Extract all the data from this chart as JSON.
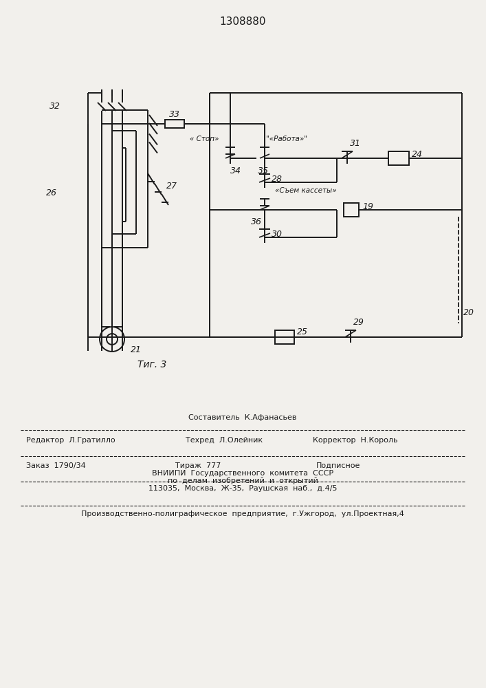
{
  "title": "1308880",
  "fig_label": "Τиг. 3",
  "bg": "#f2f0ec",
  "lc": "#1a1a1a",
  "label_32": "32",
  "label_26": "26",
  "label_27": "27",
  "label_21": "21",
  "label_33": "33",
  "label_34": "34",
  "label_35": "35",
  "label_28": "28",
  "label_31": "31",
  "label_24": "24",
  "label_36": "36",
  "label_30": "30",
  "label_19": "19",
  "label_20": "20",
  "label_25": "25",
  "label_29": "29",
  "label_stop": "« Стоп»",
  "label_work": "«Работа»",
  "label_cassette": "«Съем кассеты»",
  "footer_composer": "Составитель  К.Афанасьев",
  "footer_editor": "Редактор  Л.Гратилло",
  "footer_techred": "Техред  Л.Олейник",
  "footer_corrector": "Корректор  Н.Король",
  "footer_order": "Заказ  1790/34",
  "footer_tirazh": "Тираж  777",
  "footer_podpisnoe": "Подписное",
  "footer_vniip1": "ВНИИПИ  Государственного  комитета  СССР",
  "footer_vniip2": "по  делам  изобретений  и  открытий",
  "footer_vniip3": "113035,  Москва,  Ж-35,  Раушская  наб.,  д.4/5",
  "footer_prod": "Производственно-полиграфическое  предприятие,  г.Ужгород,  ул.Проектная,4"
}
